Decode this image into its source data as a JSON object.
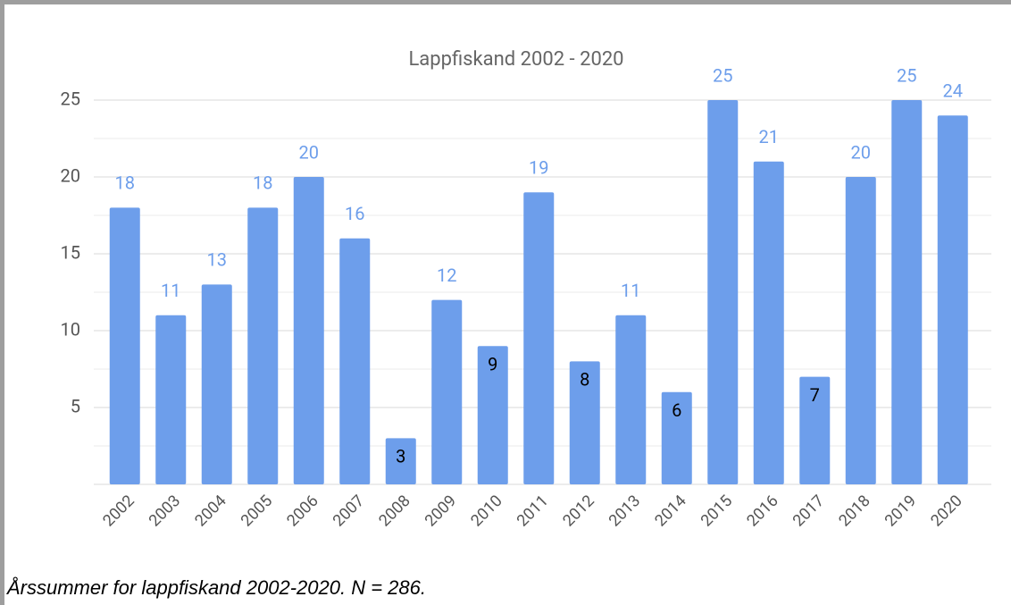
{
  "chart_data": {
    "type": "bar",
    "title": "Lappfiskand 2002 - 2020",
    "categories": [
      "2002",
      "2003",
      "2004",
      "2005",
      "2006",
      "2007",
      "2008",
      "2009",
      "2010",
      "2011",
      "2012",
      "2013",
      "2014",
      "2015",
      "2016",
      "2017",
      "2018",
      "2019",
      "2020"
    ],
    "values": [
      18,
      11,
      13,
      18,
      20,
      16,
      3,
      12,
      9,
      19,
      8,
      11,
      6,
      25,
      21,
      7,
      20,
      25,
      24
    ],
    "color": "#6d9eeb",
    "ylim": [
      0,
      25
    ],
    "yticks": [
      5,
      10,
      15,
      20,
      25
    ],
    "grid": true,
    "caption": "Årssummer for lappfiskand 2002-2020. N = 286."
  }
}
